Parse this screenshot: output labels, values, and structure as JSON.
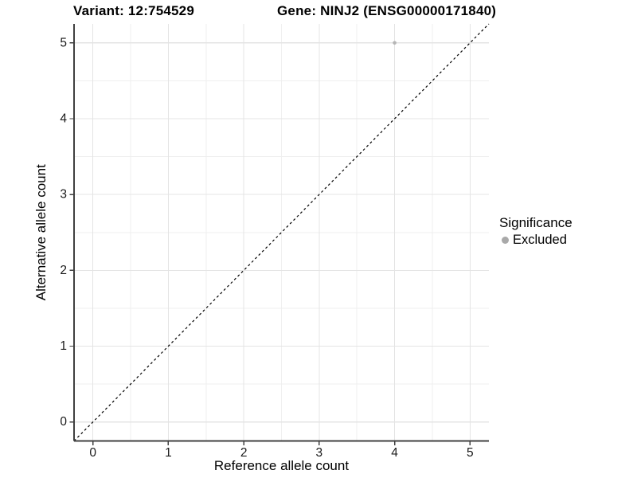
{
  "header": {
    "variant_title": "Variant: 12:754529",
    "gene_title": "Gene: NINJ2 (ENSG00000171840)"
  },
  "legend": {
    "title": "Significance",
    "position": "right",
    "items": [
      {
        "label": "Excluded",
        "color": "#a9a9a9"
      }
    ]
  },
  "chart_data": {
    "type": "scatter",
    "title": "",
    "xlabel": "Reference allele count",
    "ylabel": "Alternative allele count",
    "xlim": [
      -0.25,
      5.25
    ],
    "ylim": [
      -0.25,
      5.25
    ],
    "xticks": [
      0,
      1,
      2,
      3,
      4,
      5
    ],
    "yticks": [
      0,
      1,
      2,
      3,
      4,
      5
    ],
    "minor_step": 0.5,
    "grid": true,
    "legend_position": "right",
    "series": [
      {
        "name": "Excluded",
        "color": "#b5b5b5",
        "points": [
          {
            "x": 4,
            "y": 5
          }
        ]
      }
    ],
    "reference_line": {
      "type": "identity",
      "slope": 1,
      "intercept": 0,
      "style": "dashed",
      "color": "#000000"
    },
    "colors": {
      "major_grid": "#e4e4e4",
      "minor_grid": "#efefef",
      "axis": "#404040",
      "tick_label": "#1a1a1a",
      "axis_title": "#000000"
    }
  }
}
